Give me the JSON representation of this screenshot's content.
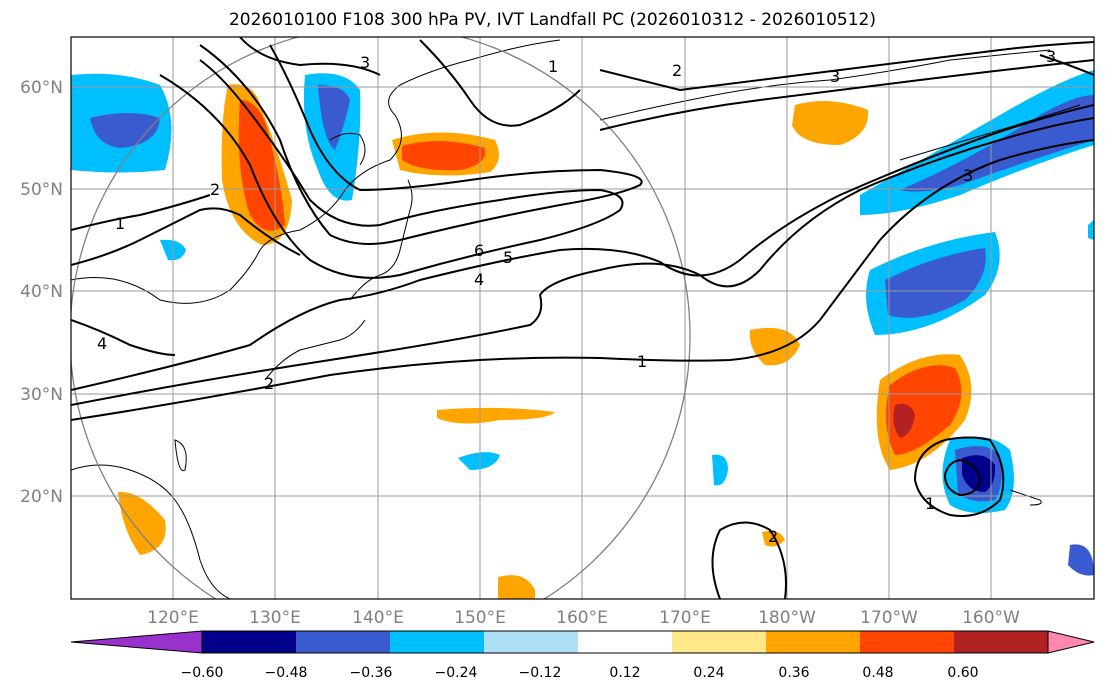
{
  "title": "2026010100 F108 300 hPa PV, IVT Landfall PC (2026010312 - 2026010512)",
  "map": {
    "lat_labels": [
      "60°N",
      "50°N",
      "40°N",
      "30°N",
      "20°N"
    ],
    "lat_values": [
      60,
      50,
      40,
      30,
      20
    ],
    "lon_labels": [
      "120°E",
      "130°E",
      "140°E",
      "150°E",
      "160°E",
      "170°E",
      "180°W",
      "170°W",
      "160°W"
    ],
    "lon_values": [
      120,
      130,
      140,
      150,
      160,
      170,
      180,
      190,
      200
    ],
    "lon_range": [
      110,
      210
    ],
    "lat_range": [
      10,
      65
    ]
  },
  "contour_labels": [
    "1",
    "2",
    "4",
    "6",
    "5",
    "4",
    "1",
    "2",
    "3",
    "3",
    "3",
    "1",
    "2",
    "3",
    "2",
    "1"
  ],
  "colorbar": {
    "ticks": [
      "−0.60",
      "−0.48",
      "−0.36",
      "−0.24",
      "−0.12",
      "0.12",
      "0.24",
      "0.36",
      "0.48",
      "0.60"
    ],
    "colors": [
      "#9932CC",
      "#00008B",
      "#3A5BD0",
      "#00BFFF",
      "#ADDFF7",
      "#FFFFFF",
      "#FFE88A",
      "#FFA500",
      "#FF4500",
      "#B22222",
      "#FF88B0"
    ]
  }
}
